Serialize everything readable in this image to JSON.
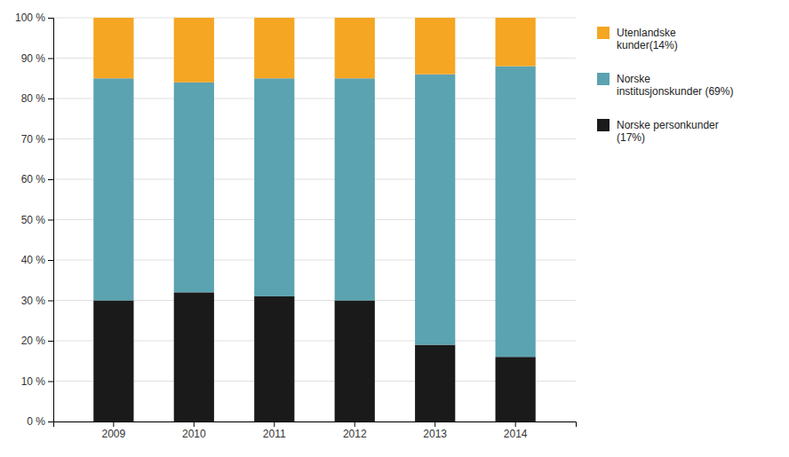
{
  "chart_data": {
    "type": "bar",
    "stacked": true,
    "categories": [
      "2009",
      "2010",
      "2011",
      "2012",
      "2013",
      "2014"
    ],
    "series": [
      {
        "name": "Norske personkunder\n(17%)",
        "color": "#1a1a1a",
        "values": [
          30,
          32,
          31,
          30,
          19,
          16
        ]
      },
      {
        "name": "Norske\ninstitusjonskunder (69%)",
        "color": "#5ba3b0",
        "values": [
          55,
          52,
          54,
          55,
          67,
          72
        ]
      },
      {
        "name": "Utenlandske\nkunder(14%)",
        "color": "#f5a623",
        "values": [
          15,
          16,
          15,
          15,
          14,
          12
        ]
      }
    ],
    "ylim": [
      0,
      100
    ],
    "yticks": [
      {
        "value": 0,
        "label": "0 %"
      },
      {
        "value": 10,
        "label": "10 %"
      },
      {
        "value": 20,
        "label": "20 %"
      },
      {
        "value": 30,
        "label": "30 %"
      },
      {
        "value": 40,
        "label": "40 %"
      },
      {
        "value": 50,
        "label": "50 %"
      },
      {
        "value": 60,
        "label": "60 %"
      },
      {
        "value": 70,
        "label": "70 %"
      },
      {
        "value": 80,
        "label": "80 %"
      },
      {
        "value": 90,
        "label": "90 %"
      },
      {
        "value": 100,
        "label": "100 %"
      }
    ],
    "grid": true,
    "legend": "right"
  }
}
